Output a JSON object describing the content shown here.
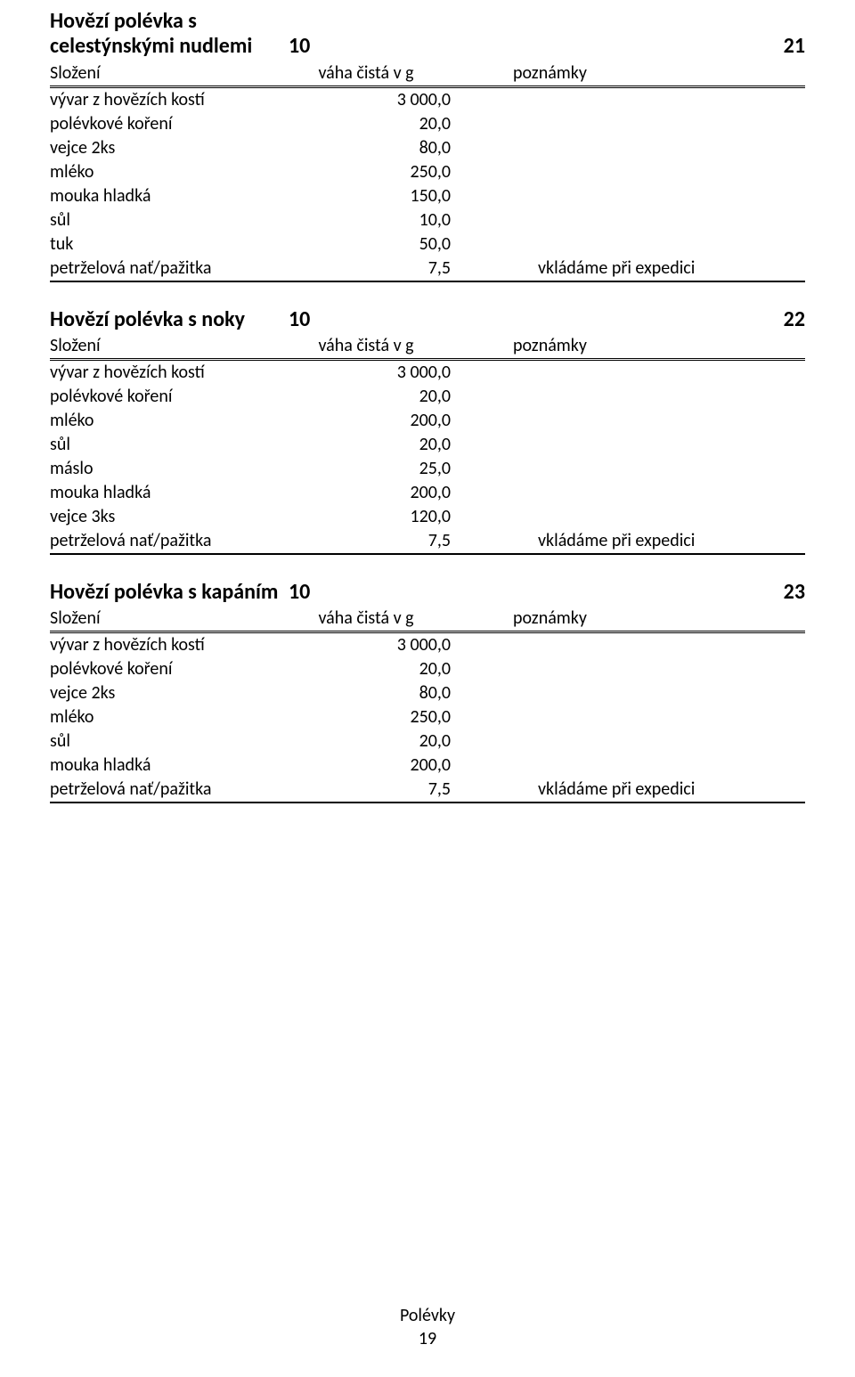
{
  "column_headers": {
    "composition": "Složení",
    "weight": "váha čistá v g",
    "notes": "poznámky"
  },
  "recipes": [
    {
      "title": "Hovězí polévka s celestýnskými nudlemi",
      "portions": "10",
      "id": "21",
      "ingredients": [
        {
          "name": "vývar z hovězích kostí",
          "weight": "3 000,0",
          "note": ""
        },
        {
          "name": "polévkové koření",
          "weight": "20,0",
          "note": ""
        },
        {
          "name": "vejce 2ks",
          "weight": "80,0",
          "note": ""
        },
        {
          "name": "mléko",
          "weight": "250,0",
          "note": ""
        },
        {
          "name": "mouka hladká",
          "weight": "150,0",
          "note": ""
        },
        {
          "name": "sůl",
          "weight": "10,0",
          "note": ""
        },
        {
          "name": "tuk",
          "weight": "50,0",
          "note": ""
        },
        {
          "name": "petrželová nať/pažitka",
          "weight": "7,5",
          "note": "vkládáme při expedici"
        }
      ]
    },
    {
      "title": "Hovězí polévka s  noky",
      "portions": "10",
      "id": "22",
      "ingredients": [
        {
          "name": "vývar z hovězích kostí",
          "weight": "3 000,0",
          "note": ""
        },
        {
          "name": "polévkové koření",
          "weight": "20,0",
          "note": ""
        },
        {
          "name": "mléko",
          "weight": "200,0",
          "note": ""
        },
        {
          "name": "sůl",
          "weight": "20,0",
          "note": ""
        },
        {
          "name": "máslo",
          "weight": "25,0",
          "note": ""
        },
        {
          "name": "mouka hladká",
          "weight": "200,0",
          "note": ""
        },
        {
          "name": "vejce 3ks",
          "weight": "120,0",
          "note": ""
        },
        {
          "name": "petrželová nať/pažitka",
          "weight": "7,5",
          "note": "vkládáme při expedici"
        }
      ]
    },
    {
      "title": "Hovězí polévka s kapáním",
      "portions": "10",
      "id": "23",
      "ingredients": [
        {
          "name": "vývar z hovězích kostí",
          "weight": "3 000,0",
          "note": ""
        },
        {
          "name": "polévkové koření",
          "weight": "20,0",
          "note": ""
        },
        {
          "name": "vejce 2ks",
          "weight": "80,0",
          "note": ""
        },
        {
          "name": "mléko",
          "weight": "250,0",
          "note": ""
        },
        {
          "name": "sůl",
          "weight": "20,0",
          "note": ""
        },
        {
          "name": "mouka hladká",
          "weight": "200,0",
          "note": ""
        },
        {
          "name": "petrželová nať/pažitka",
          "weight": "7,5",
          "note": "vkládáme při expedici"
        }
      ]
    }
  ],
  "footer": {
    "section": "Polévky",
    "page_number": "19"
  }
}
